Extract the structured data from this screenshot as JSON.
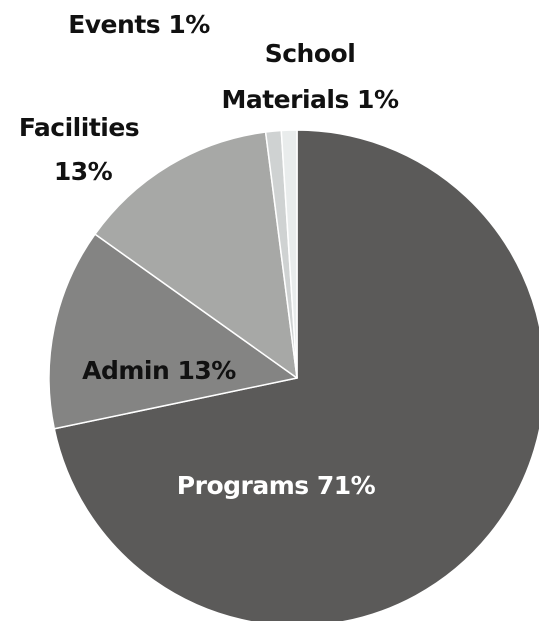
{
  "chart_data": {
    "type": "pie",
    "title": "",
    "slices": [
      {
        "label": "Programs 71%",
        "value": 71,
        "color": "#5b5a59",
        "label_color": "#ffffff"
      },
      {
        "label": "Admin 13%",
        "value": 13,
        "color": "#848483",
        "label_color": "#111111"
      },
      {
        "label": "Facilities 13%",
        "value": 13,
        "color": "#a7a8a6",
        "label_color": "#111111"
      },
      {
        "label": "Events 1%",
        "value": 1,
        "color": "#cfd2d2",
        "label_color": "#111111"
      },
      {
        "label": "School Materials 1%",
        "value": 1,
        "color": "#e9ecec",
        "label_color": "#111111"
      }
    ],
    "start_angle": "12 o'clock",
    "direction": "clockwise",
    "legend": "none",
    "labels": {
      "programs": "Programs 71%",
      "admin": "Admin 13%",
      "facilities_line1": "Facilities",
      "facilities_line2": "13%",
      "events": "Events 1%",
      "school_line1": "School",
      "school_line2": "Materials 1%"
    }
  }
}
